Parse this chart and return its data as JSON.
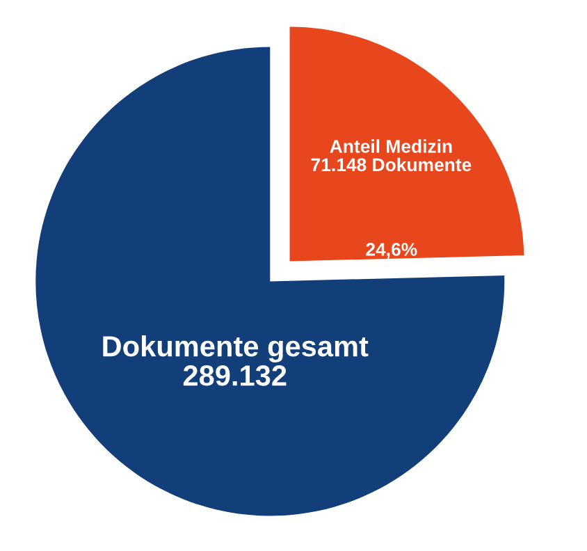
{
  "chart_data": {
    "type": "pie",
    "categories": [
      "Dokumente gesamt",
      "Anteil Medizin"
    ],
    "values": [
      75.4,
      24.6
    ],
    "colors": [
      "#123f7a",
      "#e8461c"
    ],
    "value_labels": [
      null,
      "24,6%"
    ],
    "annotations": [
      "289.132",
      "71.148 Dokumente"
    ]
  }
}
